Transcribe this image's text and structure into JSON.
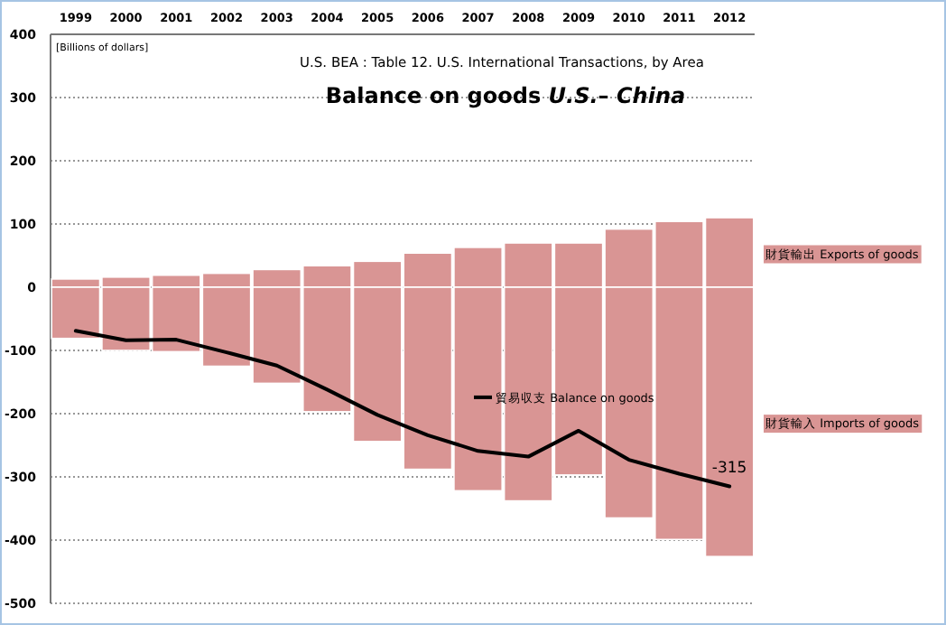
{
  "chart_data": {
    "type": "bar",
    "title": "Balance on goods *U.S.*– *China*",
    "subtitle": "U.S.  BEA : Table 12. U.S. International Transactions, by Area",
    "ylabel": "[Billions of dollars]",
    "categories": [
      "1999",
      "2000",
      "2001",
      "2002",
      "2003",
      "2004",
      "2005",
      "2006",
      "2007",
      "2008",
      "2009",
      "2010",
      "2011",
      "2012"
    ],
    "stacked": true,
    "grid": "y",
    "ylim": [
      -500,
      400
    ],
    "yticks": [
      -500,
      -400,
      -300,
      -200,
      -100,
      0,
      100,
      200,
      300,
      400
    ],
    "series": [
      {
        "name": "財貨輸出 Exports of goods",
        "color": "#d99594",
        "values": [
          13,
          16,
          19,
          22,
          28,
          34,
          41,
          54,
          63,
          70,
          70,
          92,
          104,
          110
        ]
      },
      {
        "name": "財貨輸入 Imports of goods",
        "color": "#d99594",
        "values": [
          -81,
          -100,
          -102,
          -125,
          -152,
          -197,
          -244,
          -288,
          -322,
          -338,
          -297,
          -365,
          -399,
          -426
        ]
      },
      {
        "name": "貿易収支 Balance on goods",
        "type": "line",
        "color": "#000000",
        "marker": "none",
        "values": [
          -69,
          -84,
          -83,
          -103,
          -124,
          -162,
          -202,
          -234,
          -259,
          -268,
          -227,
          -273,
          -295,
          -315
        ],
        "value_labels": [
          null,
          null,
          null,
          null,
          null,
          null,
          null,
          null,
          null,
          null,
          null,
          null,
          null,
          "-315"
        ]
      }
    ]
  }
}
